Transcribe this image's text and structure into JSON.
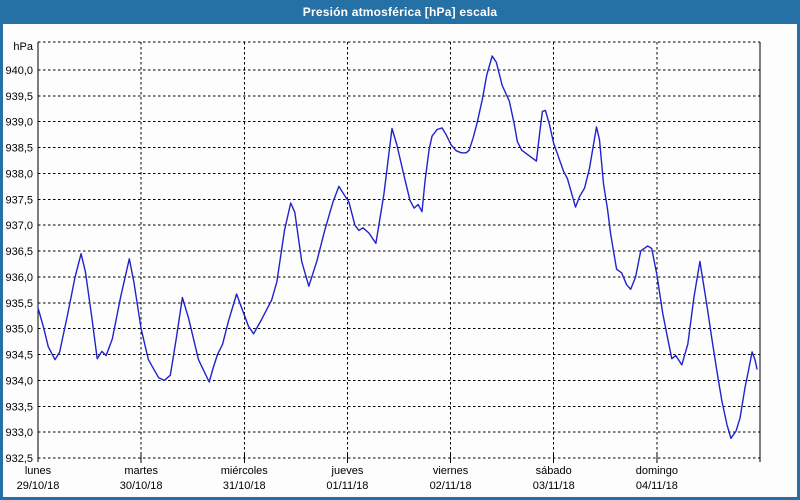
{
  "window": {
    "title": "Presión atmosférica [hPa] escala"
  },
  "colors": {
    "title_bar": "#2571a6",
    "window_border": "#2571a6",
    "title_text": "#ffffff",
    "plot_background": "#fcfdfc",
    "grid": "#000000",
    "label_text": "#000000",
    "line": "#2222cc"
  },
  "chart_data": {
    "type": "line",
    "title": "Presión atmosférica [hPa] escala",
    "grid": "dashed horizontal every 0.5 hPa, dashed vertical every day",
    "legend": "none",
    "y_axis": {
      "unit_label": "hPa",
      "min": 932.5,
      "max": 940.5,
      "tick_step": 0.5,
      "tick_labels": [
        "940,0",
        "939,5",
        "939,0",
        "938,5",
        "938,0",
        "937,5",
        "937,0",
        "936,5",
        "936,0",
        "935,5",
        "935,0",
        "934,5",
        "934,0",
        "933,5",
        "933,0",
        "932,5"
      ]
    },
    "x_axis": {
      "range_days": 7,
      "days": [
        {
          "name": "lunes",
          "date": "29/10/18"
        },
        {
          "name": "martes",
          "date": "30/10/18"
        },
        {
          "name": "miércoles",
          "date": "31/10/18"
        },
        {
          "name": "jueves",
          "date": "01/11/18"
        },
        {
          "name": "viernes",
          "date": "02/11/18"
        },
        {
          "name": "sábado",
          "date": "03/11/18"
        },
        {
          "name": "domingo",
          "date": "04/11/18"
        }
      ]
    },
    "series": [
      {
        "name": "Presión atmosférica",
        "color": "#2222cc",
        "points": [
          [
            0.0,
            935.4
          ],
          [
            0.05,
            935.05
          ],
          [
            0.1,
            934.65
          ],
          [
            0.165,
            934.4
          ],
          [
            0.21,
            934.55
          ],
          [
            0.29,
            935.3
          ],
          [
            0.36,
            936.0
          ],
          [
            0.418,
            936.45
          ],
          [
            0.46,
            936.1
          ],
          [
            0.52,
            935.25
          ],
          [
            0.574,
            934.42
          ],
          [
            0.62,
            934.56
          ],
          [
            0.66,
            934.48
          ],
          [
            0.72,
            934.8
          ],
          [
            0.8,
            935.6
          ],
          [
            0.885,
            936.35
          ],
          [
            0.93,
            935.9
          ],
          [
            1.0,
            935.0
          ],
          [
            1.07,
            934.4
          ],
          [
            1.17,
            934.05
          ],
          [
            1.225,
            934.0
          ],
          [
            1.283,
            934.1
          ],
          [
            1.34,
            934.8
          ],
          [
            1.4,
            935.6
          ],
          [
            1.46,
            935.2
          ],
          [
            1.556,
            934.4
          ],
          [
            1.66,
            933.97
          ],
          [
            1.7,
            934.25
          ],
          [
            1.74,
            934.5
          ],
          [
            1.79,
            934.7
          ],
          [
            1.847,
            935.15
          ],
          [
            1.925,
            935.67
          ],
          [
            1.975,
            935.4
          ],
          [
            2.04,
            935.05
          ],
          [
            2.09,
            934.9
          ],
          [
            2.16,
            935.15
          ],
          [
            2.265,
            935.55
          ],
          [
            2.315,
            935.9
          ],
          [
            2.39,
            936.9
          ],
          [
            2.45,
            937.43
          ],
          [
            2.49,
            937.25
          ],
          [
            2.557,
            936.3
          ],
          [
            2.625,
            935.82
          ],
          [
            2.703,
            936.3
          ],
          [
            2.78,
            936.9
          ],
          [
            2.86,
            937.45
          ],
          [
            2.917,
            937.75
          ],
          [
            2.965,
            937.6
          ],
          [
            3.014,
            937.45
          ],
          [
            3.072,
            937.0
          ],
          [
            3.111,
            936.9
          ],
          [
            3.15,
            936.95
          ],
          [
            3.208,
            936.85
          ],
          [
            3.276,
            936.65
          ],
          [
            3.354,
            937.6
          ],
          [
            3.432,
            938.87
          ],
          [
            3.48,
            938.55
          ],
          [
            3.549,
            937.95
          ],
          [
            3.607,
            937.48
          ],
          [
            3.646,
            937.33
          ],
          [
            3.685,
            937.4
          ],
          [
            3.723,
            937.26
          ],
          [
            3.752,
            937.85
          ],
          [
            3.791,
            938.45
          ],
          [
            3.82,
            938.72
          ],
          [
            3.869,
            938.85
          ],
          [
            3.918,
            938.88
          ],
          [
            3.957,
            938.75
          ],
          [
            4.006,
            938.55
          ],
          [
            4.054,
            938.44
          ],
          [
            4.103,
            938.4
          ],
          [
            4.152,
            938.4
          ],
          [
            4.181,
            938.45
          ],
          [
            4.22,
            938.7
          ],
          [
            4.26,
            939.0
          ],
          [
            4.31,
            939.45
          ],
          [
            4.35,
            939.9
          ],
          [
            4.404,
            940.27
          ],
          [
            4.443,
            940.15
          ],
          [
            4.501,
            939.7
          ],
          [
            4.569,
            939.4
          ],
          [
            4.618,
            938.95
          ],
          [
            4.647,
            938.62
          ],
          [
            4.69,
            938.45
          ],
          [
            4.764,
            938.34
          ],
          [
            4.832,
            938.24
          ],
          [
            4.871,
            938.9
          ],
          [
            4.89,
            939.2
          ],
          [
            4.919,
            939.22
          ],
          [
            4.958,
            938.95
          ],
          [
            5.0,
            938.58
          ],
          [
            5.036,
            938.38
          ],
          [
            5.094,
            938.05
          ],
          [
            5.133,
            937.9
          ],
          [
            5.211,
            937.35
          ],
          [
            5.25,
            937.55
          ],
          [
            5.299,
            937.72
          ],
          [
            5.347,
            938.1
          ],
          [
            5.415,
            938.9
          ],
          [
            5.444,
            938.65
          ],
          [
            5.483,
            937.8
          ],
          [
            5.522,
            937.3
          ],
          [
            5.551,
            936.85
          ],
          [
            5.58,
            936.5
          ],
          [
            5.61,
            936.15
          ],
          [
            5.658,
            936.08
          ],
          [
            5.707,
            935.85
          ],
          [
            5.746,
            935.76
          ],
          [
            5.794,
            936.0
          ],
          [
            5.843,
            936.5
          ],
          [
            5.911,
            936.6
          ],
          [
            5.95,
            936.55
          ],
          [
            5.999,
            936.05
          ],
          [
            6.057,
            935.3
          ],
          [
            6.106,
            934.8
          ],
          [
            6.145,
            934.42
          ],
          [
            6.184,
            934.48
          ],
          [
            6.242,
            934.3
          ],
          [
            6.3,
            934.7
          ],
          [
            6.359,
            935.6
          ],
          [
            6.417,
            936.3
          ],
          [
            6.485,
            935.45
          ],
          [
            6.534,
            934.8
          ],
          [
            6.582,
            934.18
          ],
          [
            6.631,
            933.6
          ],
          [
            6.679,
            933.15
          ],
          [
            6.718,
            932.88
          ],
          [
            6.767,
            933.02
          ],
          [
            6.806,
            933.27
          ],
          [
            6.854,
            933.85
          ],
          [
            6.893,
            934.24
          ],
          [
            6.923,
            934.55
          ],
          [
            6.952,
            934.4
          ],
          [
            6.971,
            934.22
          ]
        ]
      }
    ]
  }
}
